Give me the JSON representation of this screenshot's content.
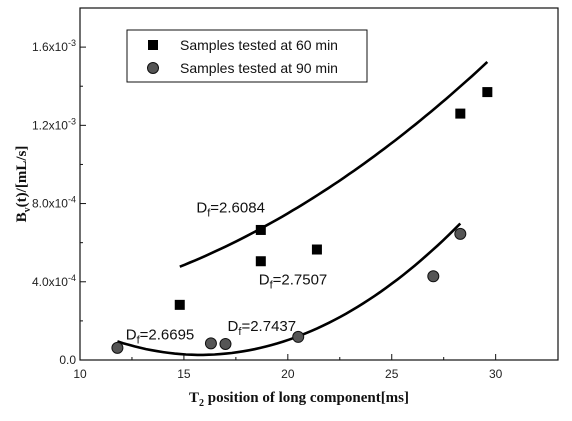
{
  "chart_data": {
    "type": "scatter",
    "xlabel": {
      "main": "T",
      "sub": "2",
      "rest": " position of long component[ms]"
    },
    "ylabel": {
      "main": "B",
      "sub": "v",
      "rest": "(t)/[mL/s]"
    },
    "xlim": [
      10,
      33
    ],
    "ylim": [
      0,
      0.0018
    ],
    "x_ticks": [
      10,
      15,
      20,
      25,
      30
    ],
    "x_tick_labels": [
      "10",
      "15",
      "20",
      "25",
      "30"
    ],
    "y_ticks": [
      0,
      0.0004,
      0.0008,
      0.0012,
      0.0016
    ],
    "y_tick_labels": [
      {
        "base": "0.0",
        "exp": ""
      },
      {
        "base": "4.0x10",
        "exp": "-4"
      },
      {
        "base": "8.0x10",
        "exp": "-4"
      },
      {
        "base": "1.2x10",
        "exp": "-3"
      },
      {
        "base": "1.6x10",
        "exp": "-3"
      }
    ],
    "legend_position": "top-left",
    "series": [
      {
        "name": "Samples tested at 60 min",
        "marker": "square",
        "color": "#000000",
        "points": [
          {
            "x": 14.8,
            "y": 0.000282
          },
          {
            "x": 18.7,
            "y": 0.000505
          },
          {
            "x": 18.7,
            "y": 0.000665
          },
          {
            "x": 21.4,
            "y": 0.000565
          },
          {
            "x": 28.3,
            "y": 0.00126
          },
          {
            "x": 29.6,
            "y": 0.00137
          }
        ],
        "fit": {
          "quadratic": [
            1.9e-06,
            -1.36e-05,
            0.000262
          ],
          "x_range": [
            14.8,
            29.6
          ]
        }
      },
      {
        "name": "Samples tested at 90 min",
        "marker": "circle",
        "color": "#555555",
        "points": [
          {
            "x": 11.8,
            "y": 6.2e-05
          },
          {
            "x": 16.3,
            "y": 8.5e-05
          },
          {
            "x": 17.0,
            "y": 8.2e-05
          },
          {
            "x": 20.5,
            "y": 0.000118
          },
          {
            "x": 27.0,
            "y": 0.000428
          },
          {
            "x": 28.3,
            "y": 0.000645
          }
        ],
        "fit": {
          "quadratic": [
            4.3e-06,
            -0.0001359,
            0.0011
          ],
          "x_range": [
            11.8,
            28.3
          ]
        }
      }
    ],
    "annotations": [
      {
        "main": "D",
        "sub": "f",
        "rest": "=2.6084",
        "x": 15.6,
        "y": 0.000755
      },
      {
        "main": "D",
        "sub": "f",
        "rest": "=2.7507",
        "x": 18.6,
        "y": 0.000385
      },
      {
        "main": "D",
        "sub": "f",
        "rest": "=2.6695",
        "x": 12.2,
        "y": 0.000105
      },
      {
        "main": "D",
        "sub": "f",
        "rest": "=2.7437",
        "x": 17.1,
        "y": 0.000148
      }
    ]
  }
}
